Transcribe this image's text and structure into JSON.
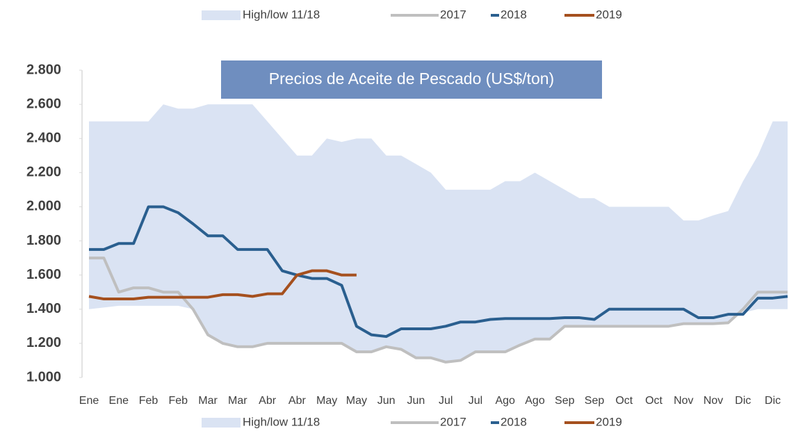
{
  "chart_data": {
    "type": "line",
    "title": "Precios de Aceite de Pescado (US$/ton)",
    "categories": [
      "Ene",
      null,
      "Ene",
      null,
      "Feb",
      null,
      "Feb",
      null,
      "Mar",
      null,
      "Mar",
      null,
      "Abr",
      null,
      "Abr",
      null,
      "May",
      null,
      "May",
      null,
      "Jun",
      null,
      "Jun",
      null,
      "Jul",
      null,
      "Jul",
      null,
      "Ago",
      null,
      "Ago",
      null,
      "Sep",
      null,
      "Sep",
      null,
      "Oct",
      null,
      "Oct",
      null,
      "Nov",
      null,
      "Nov",
      null,
      "Dic",
      null,
      "Dic",
      null
    ],
    "band": {
      "name": "High/low 11/18",
      "color": "#dae3f3",
      "high": [
        2500,
        2500,
        2500,
        2500,
        2500,
        2600,
        2575,
        2575,
        2600,
        2600,
        2600,
        2600,
        2500,
        2400,
        2300,
        2300,
        2400,
        2380,
        2400,
        2400,
        2300,
        2300,
        2250,
        2200,
        2100,
        2100,
        2100,
        2100,
        2150,
        2150,
        2200,
        2150,
        2100,
        2050,
        2050,
        2000,
        2000,
        2000,
        2000,
        2000,
        1920,
        1920,
        1950,
        1975,
        2150,
        2300,
        2500,
        2500
      ],
      "low": [
        1400,
        1410,
        1420,
        1420,
        1420,
        1420,
        1420,
        1400,
        1250,
        1200,
        1180,
        1180,
        1200,
        1200,
        1200,
        1200,
        1200,
        1200,
        1150,
        1150,
        1180,
        1165,
        1115,
        1115,
        1090,
        1100,
        1150,
        1150,
        1150,
        1190,
        1225,
        1225,
        1300,
        1300,
        1300,
        1300,
        1300,
        1300,
        1300,
        1300,
        1315,
        1315,
        1315,
        1320,
        1380,
        1400,
        1400,
        1400
      ]
    },
    "series": [
      {
        "name": "2017",
        "color": "#bfbfbf",
        "values": [
          1700,
          1700,
          1500,
          1525,
          1525,
          1500,
          1500,
          1400,
          1250,
          1200,
          1180,
          1180,
          1200,
          1200,
          1200,
          1200,
          1200,
          1200,
          1150,
          1150,
          1180,
          1165,
          1115,
          1115,
          1090,
          1100,
          1150,
          1150,
          1150,
          1190,
          1225,
          1225,
          1300,
          1300,
          1300,
          1300,
          1300,
          1300,
          1300,
          1300,
          1315,
          1315,
          1315,
          1320,
          1400,
          1500,
          1500,
          1500
        ]
      },
      {
        "name": "2018",
        "color": "#2a5f8f",
        "values": [
          1750,
          1750,
          1785,
          1785,
          2000,
          2000,
          1965,
          1900,
          1830,
          1830,
          1750,
          1750,
          1750,
          1625,
          1600,
          1580,
          1580,
          1540,
          1300,
          1250,
          1240,
          1285,
          1285,
          1285,
          1300,
          1325,
          1325,
          1340,
          1345,
          1345,
          1345,
          1345,
          1350,
          1350,
          1340,
          1400,
          1400,
          1400,
          1400,
          1400,
          1400,
          1350,
          1350,
          1370,
          1370,
          1465,
          1465,
          1475
        ]
      },
      {
        "name": "2019",
        "color": "#a5501e",
        "values": [
          1475,
          1460,
          1460,
          1460,
          1470,
          1470,
          1470,
          1470,
          1470,
          1485,
          1485,
          1475,
          1490,
          1490,
          1600,
          1625,
          1625,
          1600,
          1600,
          null,
          null,
          null,
          null,
          null,
          null,
          null,
          null,
          null,
          null,
          null,
          null,
          null,
          null,
          null,
          null,
          null,
          null,
          null,
          null,
          null,
          null,
          null,
          null,
          null,
          null,
          null,
          null,
          null
        ]
      }
    ],
    "ylim": [
      1000,
      2800
    ],
    "yticks": [
      {
        "value": 1000,
        "label": "1.000"
      },
      {
        "value": 1200,
        "label": "1.200"
      },
      {
        "value": 1400,
        "label": "1.400"
      },
      {
        "value": 1600,
        "label": "1.600"
      },
      {
        "value": 1800,
        "label": "1.800"
      },
      {
        "value": 2000,
        "label": "2.000"
      },
      {
        "value": 2200,
        "label": "2.200"
      },
      {
        "value": 2400,
        "label": "2.400"
      },
      {
        "value": 2600,
        "label": "2.600"
      },
      {
        "value": 2800,
        "label": "2.800"
      }
    ],
    "grid": false
  }
}
